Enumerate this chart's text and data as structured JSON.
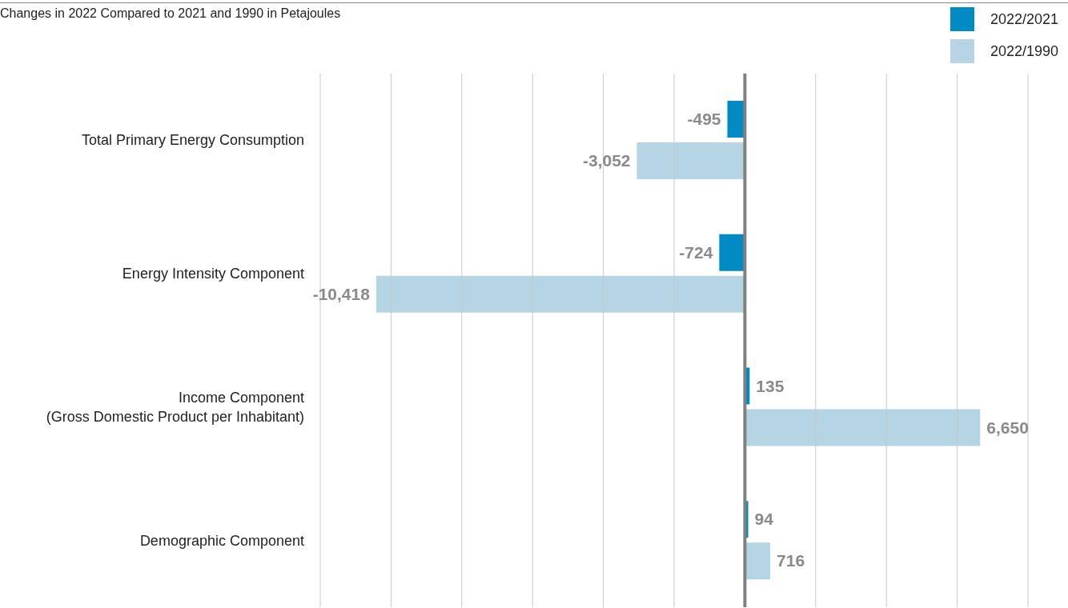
{
  "chart_data": {
    "type": "bar",
    "orientation": "horizontal",
    "title": "Changes in 2022 Compared to 2021 and 1990 in Petajoules",
    "categories": [
      "Total Primary Energy Consumption",
      "Energy Intensity Component",
      "Income Component\n(Gross Domestic Product per Inhabitant)",
      "Demographic Component"
    ],
    "series": [
      {
        "name": "2022/2021",
        "color": "#008bc4",
        "values": [
          -495,
          -724,
          135,
          94
        ],
        "value_labels": [
          "-495",
          "-724",
          "135",
          "94"
        ]
      },
      {
        "name": "2022/1990",
        "color": "#b5d4e4",
        "values": [
          -3052,
          -10418,
          6650,
          716
        ],
        "value_labels": [
          "-3,052",
          "-10,418",
          "6,650",
          "716"
        ]
      }
    ],
    "xlim": [
      -12000,
      8000
    ],
    "xticks": [
      {
        "value": -12000,
        "label": null
      },
      {
        "value": -10000,
        "label": null
      },
      {
        "value": -8000,
        "label": null
      },
      {
        "value": -6000,
        "label": null
      },
      {
        "value": -4000,
        "label": null
      },
      {
        "value": -2000,
        "label": null
      },
      {
        "value": 0,
        "label": null
      },
      {
        "value": 2000,
        "label": null
      },
      {
        "value": 4000,
        "label": null
      },
      {
        "value": 6000,
        "label": null
      },
      {
        "value": 8000,
        "label": null
      }
    ],
    "tick_labels": "y",
    "grid": "x",
    "legend": "top right",
    "ref_lines": [
      {
        "axis": "x",
        "value": 0,
        "color": "#808080"
      }
    ]
  }
}
